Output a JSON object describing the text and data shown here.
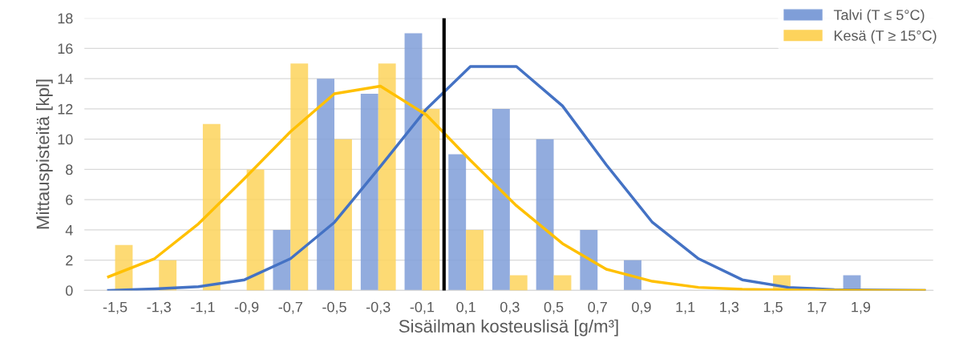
{
  "chart_data": {
    "type": "bar",
    "xlabel": "Sisäilman kosteuslisä [g/m³]",
    "ylabel": "Mittauspisteitä [kpl]",
    "x": [
      -1.5,
      -1.3,
      -1.1,
      -0.9,
      -0.7,
      -0.5,
      -0.3,
      -0.1,
      0.1,
      0.3,
      0.5,
      0.7,
      0.9,
      1.1,
      1.3,
      1.5,
      1.7,
      1.9
    ],
    "xlim": [
      -1.64,
      2.23
    ],
    "xticks": [
      {
        "value": -1.5,
        "label": "-1,5"
      },
      {
        "value": -1.3,
        "label": "-1,3"
      },
      {
        "value": -1.1,
        "label": "-1,1"
      },
      {
        "value": -0.9,
        "label": "-0,9"
      },
      {
        "value": -0.7,
        "label": "-0,7"
      },
      {
        "value": -0.5,
        "label": "-0,5"
      },
      {
        "value": -0.3,
        "label": "-0,3"
      },
      {
        "value": -0.1,
        "label": "-0,1"
      },
      {
        "value": 0.1,
        "label": "0,1"
      },
      {
        "value": 0.3,
        "label": "0,3"
      },
      {
        "value": 0.5,
        "label": "0,5"
      },
      {
        "value": 0.7,
        "label": "0,7"
      },
      {
        "value": 0.9,
        "label": "0,9"
      },
      {
        "value": 1.1,
        "label": "1,1"
      },
      {
        "value": 1.3,
        "label": "1,3"
      },
      {
        "value": 1.5,
        "label": "1,5"
      },
      {
        "value": 1.7,
        "label": "1,7"
      },
      {
        "value": 1.9,
        "label": "1,9"
      }
    ],
    "ylim": [
      0,
      18
    ],
    "yticks": [
      0,
      2,
      4,
      6,
      8,
      10,
      12,
      14,
      16,
      18
    ],
    "grid": "y",
    "legend": "top right",
    "series": [
      {
        "name": "Talvi (T ≤ 5°C)",
        "color": "#7f9ed8",
        "values": [
          0,
          0,
          0,
          0,
          4,
          14,
          13,
          17,
          9,
          12,
          10,
          4,
          2,
          0,
          0,
          0,
          0,
          1
        ]
      },
      {
        "name": "Kesä (T ≥ 15°C)",
        "color": "#fdd35c",
        "values": [
          3,
          2,
          11,
          8,
          15,
          10,
          15,
          12,
          4,
          1,
          1,
          0,
          0,
          0,
          0,
          1,
          0,
          0
        ]
      },
      {
        "type": "line",
        "color": "#4472c4",
        "x": [
          -1.53,
          -1.32,
          -1.12,
          -0.91,
          -0.7,
          -0.5,
          -0.29,
          -0.08,
          0.12,
          0.33,
          0.54,
          0.74,
          0.95,
          1.16,
          1.36,
          1.57,
          1.78,
          1.98,
          2.19
        ],
        "values": [
          0,
          0.1,
          0.25,
          0.7,
          2.1,
          4.5,
          8.2,
          12,
          14.8,
          14.8,
          12.2,
          8.3,
          4.5,
          2.1,
          0.7,
          0.2,
          0.05,
          0.02,
          0
        ]
      },
      {
        "type": "line",
        "color": "#ffc000",
        "x": [
          -1.53,
          -1.32,
          -1.12,
          -0.91,
          -0.7,
          -0.5,
          -0.29,
          -0.08,
          0.12,
          0.33,
          0.54,
          0.74,
          0.95,
          1.16,
          1.36,
          1.57,
          1.78,
          1.98,
          2.19
        ],
        "values": [
          0.9,
          2.1,
          4.4,
          7.4,
          10.5,
          13,
          13.5,
          11.6,
          8.6,
          5.6,
          3.1,
          1.4,
          0.6,
          0.2,
          0.07,
          0.02,
          0.01,
          0,
          0
        ]
      }
    ],
    "ref_lines": [
      {
        "axis": "x",
        "value": 0,
        "color": "#000000"
      }
    ]
  }
}
